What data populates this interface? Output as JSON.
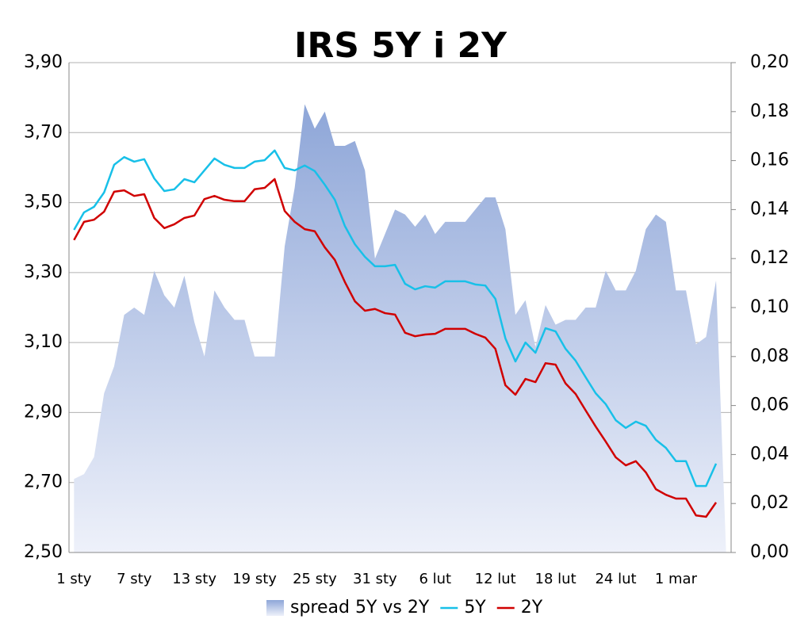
{
  "chart_data": {
    "type": "line",
    "title": "IRS 5Y i 2Y",
    "categories": [
      "1 sty",
      null,
      null,
      null,
      null,
      null,
      "7 sty",
      null,
      null,
      null,
      null,
      null,
      "13 sty",
      null,
      null,
      null,
      null,
      null,
      "19 sty",
      null,
      null,
      null,
      null,
      null,
      "25 sty",
      null,
      null,
      null,
      null,
      null,
      "31 sty",
      null,
      null,
      null,
      null,
      null,
      "6 lut",
      null,
      null,
      null,
      null,
      null,
      "12 lut",
      null,
      null,
      null,
      null,
      null,
      "18 lut",
      null,
      null,
      null,
      null,
      null,
      "24 lut",
      null,
      null,
      null,
      null,
      null,
      "1 mar",
      null,
      null,
      null,
      null,
      null
    ],
    "series": [
      {
        "name": "spread 5Y vs 2Y",
        "color": "#8ea6d8",
        "kind": "area",
        "axis": "y2",
        "values": [
          0.03,
          0.032,
          0.039,
          0.065,
          0.076,
          0.097,
          0.1,
          0.097,
          0.115,
          0.105,
          0.1,
          0.113,
          0.094,
          0.08,
          0.107,
          0.1,
          0.095,
          0.095,
          0.08,
          0.08,
          0.08,
          0.125,
          0.149,
          0.183,
          0.173,
          0.18,
          0.166,
          0.166,
          0.168,
          0.156,
          0.12,
          0.13,
          0.14,
          0.138,
          0.133,
          0.138,
          0.13,
          0.135,
          0.135,
          0.135,
          0.14,
          0.145,
          0.145,
          0.132,
          0.097,
          0.103,
          0.084,
          0.101,
          0.093,
          0.095,
          0.095,
          0.1,
          0.1,
          0.115,
          0.107,
          0.107,
          0.115,
          0.132,
          0.138,
          0.135,
          0.107,
          0.107,
          0.085,
          0.088,
          0.111,
          0.0
        ]
      },
      {
        "name": "5Y",
        "color": "#18c0e8",
        "values": [
          3.422,
          3.472,
          3.488,
          3.529,
          3.608,
          3.63,
          3.617,
          3.624,
          3.569,
          3.533,
          3.538,
          3.567,
          3.558,
          3.592,
          3.626,
          3.608,
          3.599,
          3.599,
          3.617,
          3.621,
          3.649,
          3.599,
          3.592,
          3.606,
          3.59,
          3.551,
          3.508,
          3.433,
          3.381,
          3.345,
          3.318,
          3.318,
          3.322,
          3.268,
          3.252,
          3.261,
          3.257,
          3.275,
          3.275,
          3.275,
          3.266,
          3.263,
          3.225,
          3.112,
          3.046,
          3.1,
          3.071,
          3.141,
          3.132,
          3.082,
          3.048,
          3.001,
          2.955,
          2.924,
          2.878,
          2.856,
          2.874,
          2.862,
          2.822,
          2.799,
          2.761,
          2.761,
          2.69,
          2.69,
          2.754,
          null
        ]
      },
      {
        "name": "2Y",
        "color": "#d00000",
        "values": [
          3.393,
          3.445,
          3.451,
          3.474,
          3.531,
          3.535,
          3.519,
          3.524,
          3.456,
          3.427,
          3.438,
          3.456,
          3.463,
          3.51,
          3.519,
          3.508,
          3.504,
          3.504,
          3.538,
          3.542,
          3.567,
          3.476,
          3.445,
          3.424,
          3.418,
          3.372,
          3.336,
          3.273,
          3.218,
          3.191,
          3.196,
          3.184,
          3.18,
          3.128,
          3.118,
          3.123,
          3.125,
          3.139,
          3.139,
          3.139,
          3.125,
          3.114,
          3.082,
          2.978,
          2.951,
          2.996,
          2.987,
          3.041,
          3.037,
          2.983,
          2.953,
          2.906,
          2.86,
          2.817,
          2.772,
          2.749,
          2.761,
          2.729,
          2.681,
          2.665,
          2.654,
          2.654,
          2.606,
          2.602,
          2.643,
          null
        ]
      }
    ],
    "ylim": [
      2.5,
      3.9
    ],
    "yticks": [
      {
        "value": 2.5,
        "label": "2,50"
      },
      {
        "value": 2.7,
        "label": "2,70"
      },
      {
        "value": 2.9,
        "label": "2,90"
      },
      {
        "value": 3.1,
        "label": "3,10"
      },
      {
        "value": 3.3,
        "label": "3,30"
      },
      {
        "value": 3.5,
        "label": "3,50"
      },
      {
        "value": 3.7,
        "label": "3,70"
      },
      {
        "value": 3.9,
        "label": "3,90"
      }
    ],
    "y2lim": [
      0,
      0.2
    ],
    "y2ticks": [
      {
        "value": 0,
        "label": "0,00"
      },
      {
        "value": 0.02,
        "label": "0,02"
      },
      {
        "value": 0.04,
        "label": "0,04"
      },
      {
        "value": 0.06,
        "label": "0,06"
      },
      {
        "value": 0.08,
        "label": "0,08"
      },
      {
        "value": 0.1,
        "label": "0,10"
      },
      {
        "value": 0.12,
        "label": "0,12"
      },
      {
        "value": 0.14,
        "label": "0,14"
      },
      {
        "value": 0.16,
        "label": "0,16"
      },
      {
        "value": 0.18,
        "label": "0,18"
      },
      {
        "value": 0.2,
        "label": "0,20"
      }
    ],
    "grid": true,
    "legend": "bottom"
  }
}
